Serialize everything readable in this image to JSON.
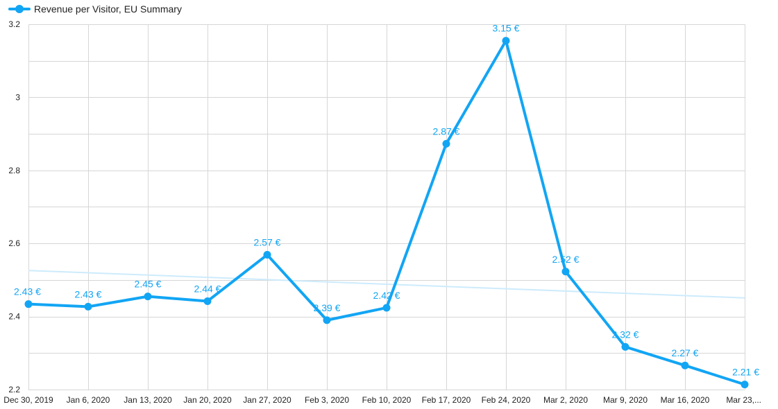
{
  "chart_data": {
    "type": "line",
    "legend": {
      "label": "Revenue per Visitor, EU Summary",
      "placement": "top-left"
    },
    "categories": [
      "Dec 30, 2019",
      "Jan 6, 2020",
      "Jan 13, 2020",
      "Jan 20, 2020",
      "Jan 27, 2020",
      "Feb 3, 2020",
      "Feb 10, 2020",
      "Feb 17, 2020",
      "Feb 24, 2020",
      "Mar 2, 2020",
      "Mar 9, 2020",
      "Mar 16, 2020",
      "Mar 23,..."
    ],
    "series": [
      {
        "name": "Revenue per Visitor, EU Summary",
        "values": [
          2.434,
          2.427,
          2.455,
          2.442,
          2.569,
          2.39,
          2.424,
          2.873,
          3.155,
          2.523,
          2.317,
          2.266,
          2.214
        ],
        "labels": [
          "2.43 €",
          "2.43 €",
          "2.45 €",
          "2.44 €",
          "2.57 €",
          "2.39 €",
          "2.42 €",
          "2.87 €",
          "3.15 €",
          "2.52 €",
          "2.32 €",
          "2.27 €",
          "2.21 €"
        ]
      }
    ],
    "trendline": {
      "start": 2.526,
      "end": 2.451
    },
    "yticks": [
      "2.2",
      "2.4",
      "2.6",
      "2.8",
      "3",
      "3.2"
    ],
    "ytick_values": [
      2.2,
      2.4,
      2.6,
      2.8,
      3.0,
      3.2
    ],
    "ylim": [
      2.2,
      3.2
    ],
    "grid": true,
    "colors": {
      "series": "#12a5f4",
      "trendline": "#cdebfc",
      "grid": "#d6d6d6",
      "text": "#222222"
    }
  }
}
